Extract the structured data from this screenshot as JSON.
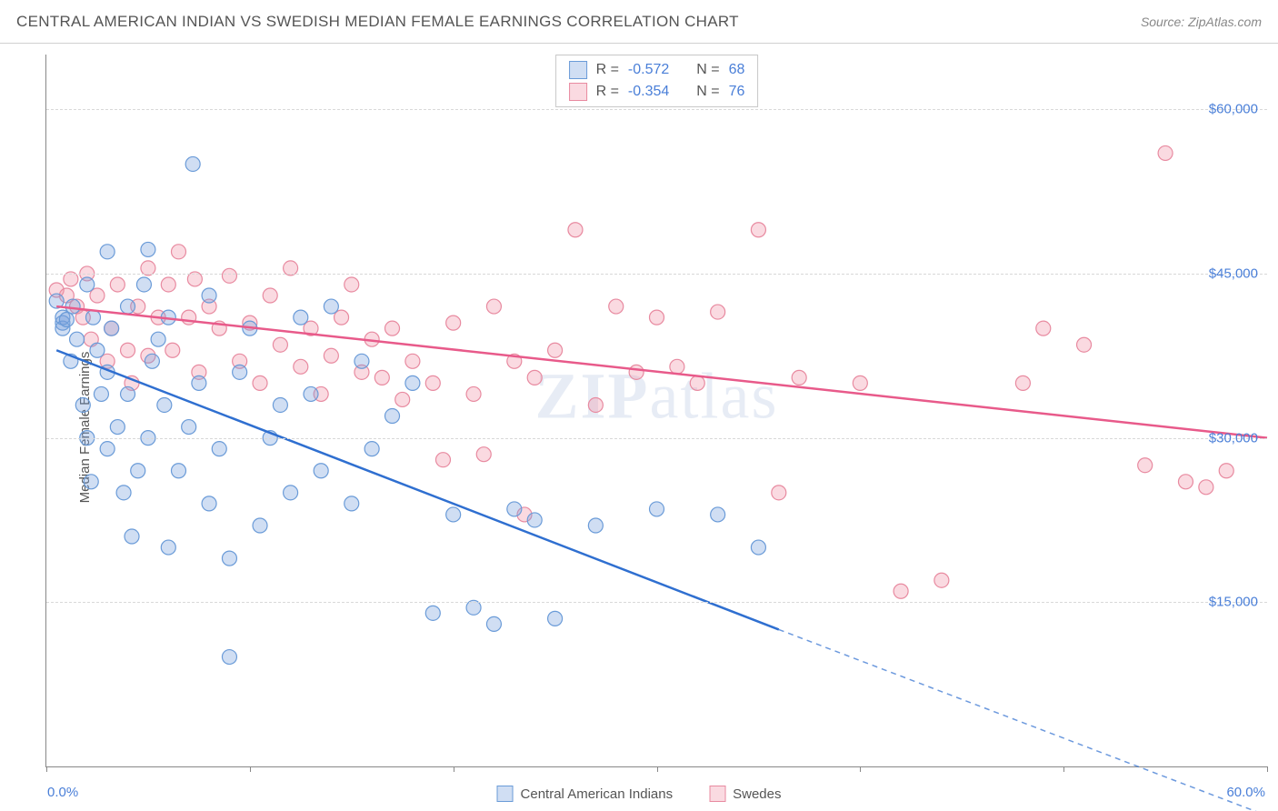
{
  "header": {
    "title": "CENTRAL AMERICAN INDIAN VS SWEDISH MEDIAN FEMALE EARNINGS CORRELATION CHART",
    "source": "Source: ZipAtlas.com"
  },
  "watermark": {
    "bold": "ZIP",
    "rest": "atlas"
  },
  "chart": {
    "type": "scatter",
    "ylabel": "Median Female Earnings",
    "xlim": [
      0,
      60
    ],
    "ylim": [
      0,
      65000
    ],
    "x_min_label": "0.0%",
    "x_max_label": "60.0%",
    "x_ticks": [
      0,
      10,
      20,
      30,
      40,
      50,
      60
    ],
    "y_gridlines": [
      15000,
      30000,
      45000,
      60000
    ],
    "y_tick_labels": [
      "$15,000",
      "$30,000",
      "$45,000",
      "$60,000"
    ],
    "background_color": "#ffffff",
    "grid_color": "#d8d8d8",
    "axis_color": "#888888",
    "label_color": "#4a7fd8",
    "text_color": "#555555",
    "series": {
      "s1": {
        "label": "Central American Indians",
        "R": "-0.572",
        "N": "68",
        "fill": "rgba(120,160,220,0.35)",
        "stroke": "#6a9bd8",
        "line_color": "#2f6fd0",
        "marker_radius": 8,
        "trend": {
          "x1": 0.5,
          "y1": 38000,
          "x2": 36,
          "y2": 12500,
          "extend_x2": 60,
          "extend_y2": -4500
        },
        "points": [
          [
            0.8,
            40500
          ],
          [
            0.8,
            40000
          ],
          [
            0.8,
            41000
          ],
          [
            0.5,
            42500
          ],
          [
            1,
            40800
          ],
          [
            1.2,
            37000
          ],
          [
            1.3,
            42000
          ],
          [
            1.5,
            39000
          ],
          [
            1.8,
            33000
          ],
          [
            2,
            30000
          ],
          [
            2,
            44000
          ],
          [
            2.2,
            26000
          ],
          [
            2.3,
            41000
          ],
          [
            2.5,
            38000
          ],
          [
            2.7,
            34000
          ],
          [
            3,
            47000
          ],
          [
            3,
            36000
          ],
          [
            3,
            29000
          ],
          [
            3.2,
            40000
          ],
          [
            3.5,
            31000
          ],
          [
            3.8,
            25000
          ],
          [
            4,
            42000
          ],
          [
            4,
            34000
          ],
          [
            4.2,
            21000
          ],
          [
            4.5,
            27000
          ],
          [
            4.8,
            44000
          ],
          [
            5,
            47200
          ],
          [
            5,
            30000
          ],
          [
            5.2,
            37000
          ],
          [
            5.5,
            39000
          ],
          [
            5.8,
            33000
          ],
          [
            6,
            20000
          ],
          [
            6,
            41000
          ],
          [
            6.5,
            27000
          ],
          [
            7,
            31000
          ],
          [
            7.2,
            55000
          ],
          [
            7.5,
            35000
          ],
          [
            8,
            24000
          ],
          [
            8,
            43000
          ],
          [
            8.5,
            29000
          ],
          [
            9,
            10000
          ],
          [
            9,
            19000
          ],
          [
            9.5,
            36000
          ],
          [
            10,
            40000
          ],
          [
            10.5,
            22000
          ],
          [
            11,
            30000
          ],
          [
            11.5,
            33000
          ],
          [
            12,
            25000
          ],
          [
            12.5,
            41000
          ],
          [
            13,
            34000
          ],
          [
            13.5,
            27000
          ],
          [
            14,
            42000
          ],
          [
            15,
            24000
          ],
          [
            15.5,
            37000
          ],
          [
            16,
            29000
          ],
          [
            17,
            32000
          ],
          [
            18,
            35000
          ],
          [
            19,
            14000
          ],
          [
            20,
            23000
          ],
          [
            21,
            14500
          ],
          [
            22,
            13000
          ],
          [
            23,
            23500
          ],
          [
            24,
            22500
          ],
          [
            25,
            13500
          ],
          [
            27,
            22000
          ],
          [
            30,
            23500
          ],
          [
            33,
            23000
          ],
          [
            35,
            20000
          ]
        ]
      },
      "s2": {
        "label": "Swedes",
        "R": "-0.354",
        "N": "76",
        "fill": "rgba(240,150,170,0.35)",
        "stroke": "#e88aa0",
        "line_color": "#e85a8a",
        "marker_radius": 8,
        "trend": {
          "x1": 0.5,
          "y1": 42000,
          "x2": 60,
          "y2": 30000
        },
        "points": [
          [
            0.5,
            43500
          ],
          [
            1,
            43000
          ],
          [
            1.2,
            44500
          ],
          [
            1.5,
            42000
          ],
          [
            1.8,
            41000
          ],
          [
            2,
            45000
          ],
          [
            2.2,
            39000
          ],
          [
            2.5,
            43000
          ],
          [
            3,
            37000
          ],
          [
            3.2,
            40000
          ],
          [
            3.5,
            44000
          ],
          [
            4,
            38000
          ],
          [
            4.2,
            35000
          ],
          [
            4.5,
            42000
          ],
          [
            5,
            45500
          ],
          [
            5,
            37500
          ],
          [
            5.5,
            41000
          ],
          [
            6,
            44000
          ],
          [
            6.2,
            38000
          ],
          [
            6.5,
            47000
          ],
          [
            7,
            41000
          ],
          [
            7.3,
            44500
          ],
          [
            7.5,
            36000
          ],
          [
            8,
            42000
          ],
          [
            8.5,
            40000
          ],
          [
            9,
            44800
          ],
          [
            9.5,
            37000
          ],
          [
            10,
            40500
          ],
          [
            10.5,
            35000
          ],
          [
            11,
            43000
          ],
          [
            11.5,
            38500
          ],
          [
            12,
            45500
          ],
          [
            12.5,
            36500
          ],
          [
            13,
            40000
          ],
          [
            13.5,
            34000
          ],
          [
            14,
            37500
          ],
          [
            14.5,
            41000
          ],
          [
            15,
            44000
          ],
          [
            15.5,
            36000
          ],
          [
            16,
            39000
          ],
          [
            16.5,
            35500
          ],
          [
            17,
            40000
          ],
          [
            17.5,
            33500
          ],
          [
            18,
            37000
          ],
          [
            19,
            35000
          ],
          [
            19.5,
            28000
          ],
          [
            20,
            40500
          ],
          [
            21,
            34000
          ],
          [
            21.5,
            28500
          ],
          [
            22,
            42000
          ],
          [
            23,
            37000
          ],
          [
            23.5,
            23000
          ],
          [
            24,
            35500
          ],
          [
            25,
            38000
          ],
          [
            26,
            49000
          ],
          [
            27,
            33000
          ],
          [
            28,
            42000
          ],
          [
            29,
            36000
          ],
          [
            30,
            41000
          ],
          [
            31,
            36500
          ],
          [
            32,
            35000
          ],
          [
            33,
            41500
          ],
          [
            35,
            49000
          ],
          [
            36,
            25000
          ],
          [
            37,
            35500
          ],
          [
            40,
            35000
          ],
          [
            42,
            16000
          ],
          [
            44,
            17000
          ],
          [
            48,
            35000
          ],
          [
            49,
            40000
          ],
          [
            51,
            38500
          ],
          [
            55,
            56000
          ],
          [
            56,
            26000
          ],
          [
            57,
            25500
          ],
          [
            58,
            27000
          ],
          [
            54,
            27500
          ]
        ]
      }
    },
    "stats_box": {
      "R_label": "R =",
      "N_label": "N ="
    },
    "bottom_legend": true
  }
}
